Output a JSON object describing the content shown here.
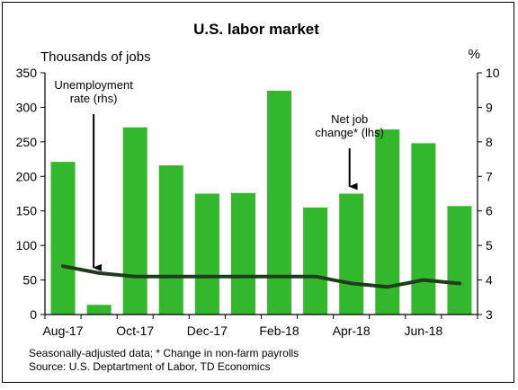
{
  "chart_data": {
    "type": "bar+line",
    "title": "U.S. labor market",
    "left_axis_unit": "Thousands of jobs",
    "right_axis_unit": "%",
    "ylim_left": [
      0,
      350
    ],
    "left_ticks": [
      0,
      50,
      100,
      150,
      200,
      250,
      300,
      350
    ],
    "ylim_right": [
      3,
      10
    ],
    "right_ticks": [
      3,
      4,
      5,
      6,
      7,
      8,
      9,
      10
    ],
    "x_tick_labels": [
      "Aug-17",
      "Oct-17",
      "Dec-17",
      "Feb-18",
      "Apr-18",
      "Jun-18"
    ],
    "months": [
      "Aug-17",
      "Sep-17",
      "Oct-17",
      "Nov-17",
      "Dec-17",
      "Jan-18",
      "Feb-18",
      "Mar-18",
      "Apr-18",
      "May-18",
      "Jun-18",
      "Jul-18"
    ],
    "series": [
      {
        "axis": "left",
        "kind": "bar",
        "color": "#33b72d",
        "values": [
          221,
          14,
          271,
          216,
          175,
          176,
          324,
          155,
          175,
          268,
          248,
          157
        ]
      },
      {
        "axis": "right",
        "kind": "line",
        "color": "#1e3d1a",
        "values": [
          4.4,
          4.2,
          4.1,
          4.1,
          4.1,
          4.1,
          4.1,
          4.1,
          3.9,
          3.8,
          4.0,
          3.9
        ]
      }
    ],
    "annotations": [
      {
        "lines": [
          "Unemployment",
          "rate (rhs)"
        ],
        "target_month": "Sep-17",
        "target_series": "line"
      },
      {
        "lines": [
          "Net job",
          "change* (lhs)"
        ],
        "target_month": "Apr-18",
        "target_series": "bar"
      }
    ],
    "footnotes": [
      "Seasonally-adjusted data; * Change in non-farm payrolls",
      "Source: U.S. Deptartment of Labor, TD Economics"
    ]
  }
}
